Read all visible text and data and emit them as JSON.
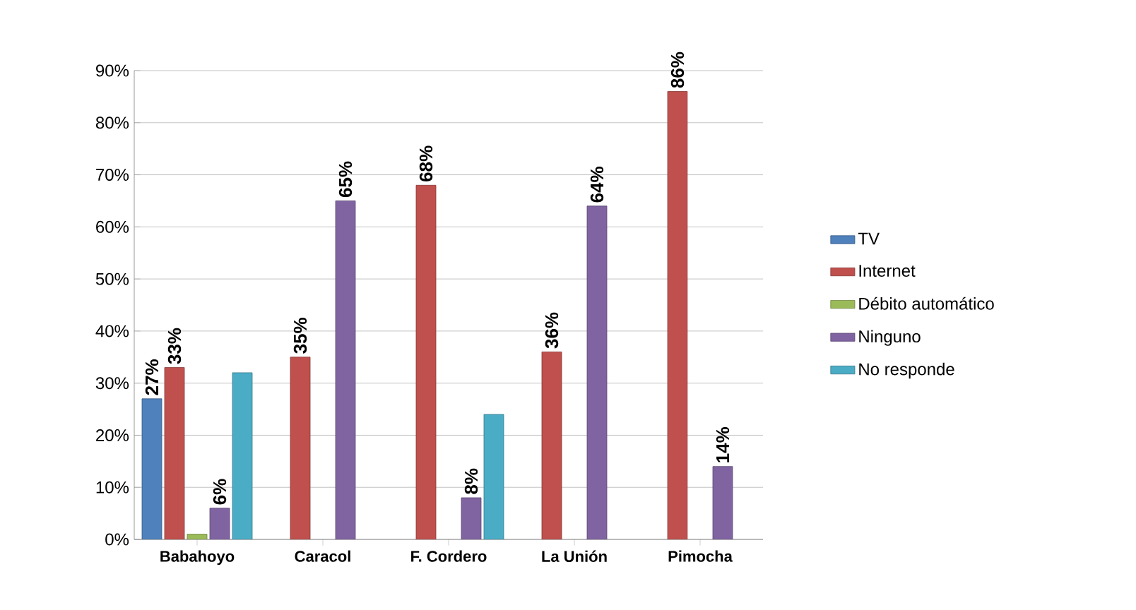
{
  "chart_data": {
    "type": "bar",
    "categories": [
      "Babahoyo",
      "Caracol",
      "F. Cordero",
      "La Unión",
      "Pimocha"
    ],
    "series": [
      {
        "name": "TV",
        "color": "#4f81bd",
        "values": [
          27,
          null,
          null,
          null,
          null
        ],
        "value_labels": [
          "27%",
          null,
          null,
          null,
          null
        ]
      },
      {
        "name": "Internet",
        "color": "#c0504d",
        "values": [
          33,
          35,
          68,
          36,
          86
        ],
        "value_labels": [
          "33%",
          "35%",
          "68%",
          "36%",
          "86%"
        ]
      },
      {
        "name": "Débito automático",
        "color": "#9bbb59",
        "values": [
          1,
          null,
          null,
          null,
          null
        ],
        "value_labels": [
          null,
          null,
          null,
          null,
          null
        ]
      },
      {
        "name": "Ninguno",
        "color": "#8064a2",
        "values": [
          6,
          65,
          8,
          64,
          14
        ],
        "value_labels": [
          "6%",
          "65%",
          "8%",
          "64%",
          "14%"
        ]
      },
      {
        "name": "No responde",
        "color": "#4bacc6",
        "values": [
          32,
          null,
          24,
          null,
          null
        ],
        "value_labels": [
          null,
          null,
          null,
          null,
          null
        ]
      }
    ],
    "ylim": [
      0,
      90
    ],
    "yticks": [
      {
        "value": 0,
        "label": "0%"
      },
      {
        "value": 10,
        "label": "10%"
      },
      {
        "value": 20,
        "label": "20%"
      },
      {
        "value": 30,
        "label": "30%"
      },
      {
        "value": 40,
        "label": "40%"
      },
      {
        "value": 50,
        "label": "50%"
      },
      {
        "value": 60,
        "label": "60%"
      },
      {
        "value": 70,
        "label": "70%"
      },
      {
        "value": 80,
        "label": "80%"
      },
      {
        "value": 90,
        "label": "90%"
      }
    ],
    "grid": "y",
    "legend": "right"
  }
}
